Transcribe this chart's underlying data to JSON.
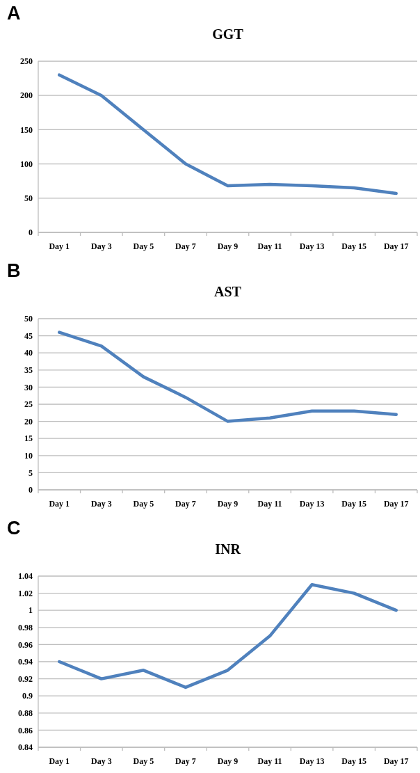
{
  "chart_data": [
    {
      "type": "line",
      "title": "GGT",
      "annotations": [
        "A"
      ],
      "categories": [
        "Day 1",
        "Day 3",
        "Day 5",
        "Day 7",
        "Day 9",
        "Day 11",
        "Day 13",
        "Day 15",
        "Day 17"
      ],
      "series": [
        {
          "color": "#4f81bd",
          "values": [
            230,
            200,
            150,
            100,
            68,
            70,
            68,
            65,
            57
          ]
        }
      ],
      "ylim": [
        0,
        250
      ],
      "yticks": [
        0,
        50,
        100,
        150,
        200,
        250
      ],
      "grid": "y"
    },
    {
      "type": "line",
      "title": "AST",
      "annotations": [
        "B"
      ],
      "categories": [
        "Day 1",
        "Day 3",
        "Day 5",
        "Day 7",
        "Day 9",
        "Day 11",
        "Day 13",
        "Day 15",
        "Day 17"
      ],
      "series": [
        {
          "color": "#4f81bd",
          "values": [
            46,
            42,
            33,
            27,
            20,
            21,
            23,
            23,
            22
          ]
        }
      ],
      "ylim": [
        0,
        50
      ],
      "yticks": [
        0,
        5,
        10,
        15,
        20,
        25,
        30,
        35,
        40,
        45,
        50
      ],
      "grid": "y"
    },
    {
      "type": "line",
      "title": "INR",
      "annotations": [
        "C"
      ],
      "categories": [
        "Day 1",
        "Day 3",
        "Day 5",
        "Day 7",
        "Day 9",
        "Day 11",
        "Day 13",
        "Day 15",
        "Day 17"
      ],
      "series": [
        {
          "color": "#4f81bd",
          "values": [
            0.94,
            0.92,
            0.93,
            0.91,
            0.93,
            0.97,
            1.03,
            1.02,
            1.0
          ]
        }
      ],
      "ylim": [
        0.84,
        1.04
      ],
      "yticks": [
        0.84,
        0.86,
        0.88,
        0.9,
        0.92,
        0.94,
        0.96,
        0.98,
        1,
        1.02,
        1.04
      ],
      "grid": "y"
    }
  ]
}
